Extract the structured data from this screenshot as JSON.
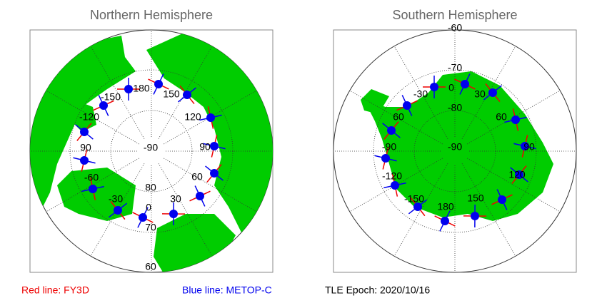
{
  "panels": [
    {
      "title": "Northern Hemisphere",
      "labels": [
        "180",
        "-150",
        "150",
        "-120",
        "120",
        "-90",
        "90",
        "90",
        "-60",
        "60",
        "-30",
        "30",
        "0",
        "80",
        "70",
        "60"
      ]
    },
    {
      "title": "Southern Hemisphere",
      "labels": [
        "-60",
        "-70",
        "0",
        "-30",
        "30",
        "-80",
        "60",
        "60",
        "-90",
        "-90",
        "90",
        "-120",
        "120",
        "-150",
        "150",
        "180"
      ]
    }
  ],
  "legend": {
    "red": "Red line: FY3D",
    "blue": "Blue line: METOP-C",
    "epoch": "TLE Epoch: 2020/10/16"
  }
}
